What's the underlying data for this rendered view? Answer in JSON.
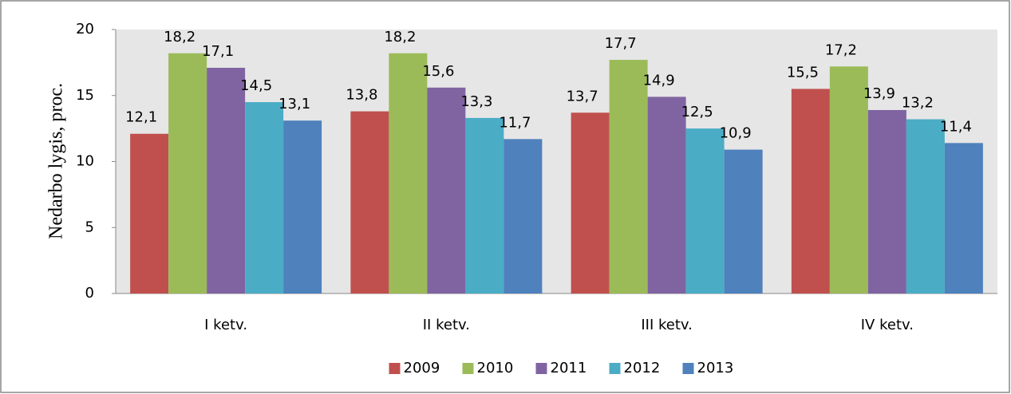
{
  "chart_data": {
    "type": "bar",
    "y_label": "Nedarbo lygis, proc.",
    "categories": [
      "I ketv.",
      "II ketv.",
      "III ketv.",
      "IV ketv."
    ],
    "series": [
      {
        "name": "2009",
        "color": "#c0504d",
        "values": [
          12.1,
          13.8,
          13.7,
          15.5
        ],
        "value_labels": [
          "12,1",
          "13,8",
          "13,7",
          "15,5"
        ]
      },
      {
        "name": "2010",
        "color": "#9bbb59",
        "values": [
          18.2,
          18.2,
          17.7,
          17.2
        ],
        "value_labels": [
          "18,2",
          "18,2",
          "17,7",
          "17,2"
        ]
      },
      {
        "name": "2011",
        "color": "#8064a2",
        "values": [
          17.1,
          15.6,
          14.9,
          13.9
        ],
        "value_labels": [
          "17,1",
          "15,6",
          "14,9",
          "13,9"
        ]
      },
      {
        "name": "2012",
        "color": "#4bacc6",
        "values": [
          14.5,
          13.3,
          12.5,
          13.2
        ],
        "value_labels": [
          "14,5",
          "13,3",
          "12,5",
          "13,2"
        ]
      },
      {
        "name": "2013",
        "color": "#4f81bd",
        "values": [
          13.1,
          11.7,
          10.9,
          11.4
        ],
        "value_labels": [
          "13,1",
          "11,7",
          "10,9",
          "11,4"
        ]
      }
    ],
    "ylim": [
      0,
      20
    ],
    "yticks": [
      0,
      5,
      10,
      15,
      20
    ],
    "grid": false,
    "legend": "bottom"
  }
}
